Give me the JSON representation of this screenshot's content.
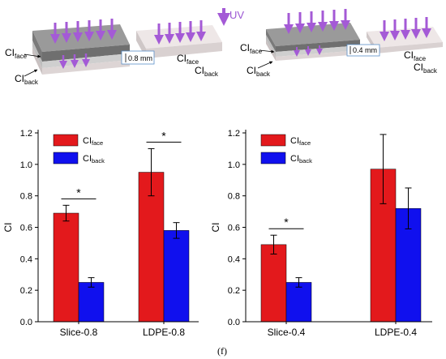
{
  "figure_label": "(f)",
  "colors": {
    "face": "#e3191c",
    "back": "#1010ee",
    "uv_arrow": "#a45ad6",
    "slab_dark": "#8c8c8c",
    "slab_light": "#e4dcdc"
  },
  "schematics": {
    "uv_label": "UV",
    "left": {
      "gap_label": "0.8 mm",
      "ci_face_main": "CI",
      "ci_face_sub": "face",
      "ci_back_main": "CI",
      "ci_back_sub": "back"
    },
    "right": {
      "gap_label": "0.4 mm",
      "ci_face_main": "CI",
      "ci_face_sub": "face",
      "ci_back_main": "CI",
      "ci_back_sub": "back"
    }
  },
  "legend": {
    "face_main": "CI",
    "face_sub": "face",
    "back_main": "CI",
    "back_sub": "back"
  },
  "significance_mark": "*",
  "chart_data": [
    {
      "type": "bar",
      "ylabel": "CI",
      "ylim": [
        0,
        1.2
      ],
      "yticks": [
        "0.0",
        "0.2",
        "0.4",
        "0.6",
        "0.8",
        "1.0",
        "1.2"
      ],
      "categories": [
        "Slice-0.8",
        "LDPE-0.8"
      ],
      "series": [
        {
          "name": "CIface",
          "values": [
            0.69,
            0.95
          ],
          "errors": [
            0.05,
            0.15
          ]
        },
        {
          "name": "CIback",
          "values": [
            0.25,
            0.58
          ],
          "errors": [
            0.03,
            0.05
          ]
        }
      ],
      "significance": [
        0,
        1
      ],
      "legend": "top-left"
    },
    {
      "type": "bar",
      "ylabel": "CI",
      "ylim": [
        0,
        1.2
      ],
      "yticks": [
        "0.0",
        "0.2",
        "0.4",
        "0.6",
        "0.8",
        "1.0",
        "1.2"
      ],
      "categories": [
        "Slice-0.4",
        "LDPE-0.4"
      ],
      "series": [
        {
          "name": "CIface",
          "values": [
            0.49,
            0.97
          ],
          "errors": [
            0.06,
            0.22
          ]
        },
        {
          "name": "CIback",
          "values": [
            0.25,
            0.72
          ],
          "errors": [
            0.03,
            0.13
          ]
        }
      ],
      "significance": [
        0
      ],
      "legend": "top-left"
    }
  ]
}
